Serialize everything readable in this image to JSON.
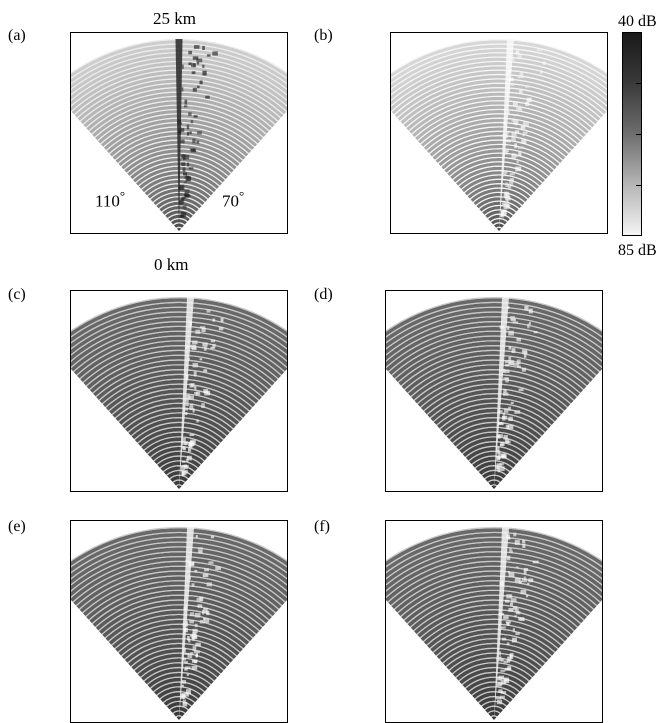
{
  "panels": [
    {
      "label": "(a)",
      "style": "light"
    },
    {
      "label": "(b)",
      "style": "lighter"
    },
    {
      "label": "(c)",
      "style": "dark"
    },
    {
      "label": "(d)",
      "style": "dark"
    },
    {
      "label": "(e)",
      "style": "dark"
    },
    {
      "label": "(f)",
      "style": "dark"
    }
  ],
  "annotations": {
    "range_top": "25 km",
    "range_bottom": "0 km",
    "bearing_left": "110",
    "bearing_right": "70",
    "degree_symbol": "°"
  },
  "colorbar": {
    "top_label": "40 dB",
    "bottom_label": "85 dB"
  }
}
